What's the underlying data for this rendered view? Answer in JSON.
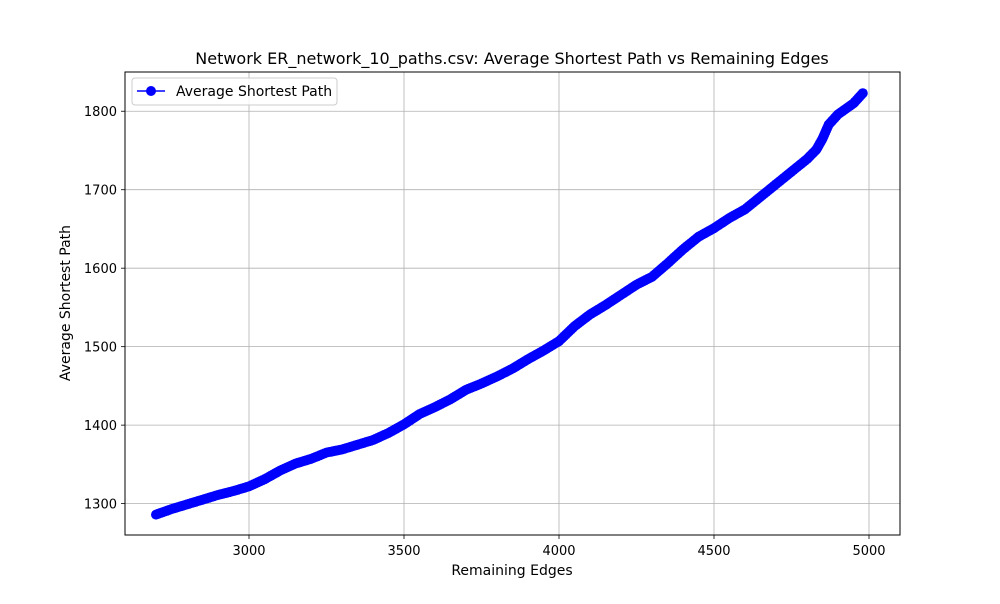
{
  "chart_data": {
    "type": "line",
    "title": "Network ER_network_10_paths.csv: Average Shortest Path vs Remaining Edges",
    "xlabel": "Remaining Edges",
    "ylabel": "Average Shortest Path",
    "xlim": [
      2600,
      5100
    ],
    "ylim": [
      1260,
      1850
    ],
    "xticks": [
      3000,
      3500,
      4000,
      4500,
      5000
    ],
    "yticks": [
      1300,
      1400,
      1500,
      1600,
      1700,
      1800
    ],
    "grid": true,
    "legend": {
      "position": "upper-left"
    },
    "series": [
      {
        "name": "Average Shortest Path",
        "color": "#0000ff",
        "marker": "circle",
        "x": [
          2700,
          2750,
          2800,
          2850,
          2900,
          2950,
          3000,
          3050,
          3100,
          3150,
          3200,
          3250,
          3300,
          3350,
          3400,
          3450,
          3500,
          3550,
          3600,
          3650,
          3700,
          3750,
          3800,
          3850,
          3900,
          3950,
          4000,
          4050,
          4100,
          4150,
          4200,
          4250,
          4300,
          4350,
          4400,
          4450,
          4500,
          4550,
          4600,
          4650,
          4700,
          4750,
          4800,
          4830,
          4850,
          4870,
          4900,
          4950,
          4980
        ],
        "y": [
          1286,
          1293,
          1299,
          1305,
          1311,
          1316,
          1322,
          1331,
          1342,
          1351,
          1357,
          1365,
          1369,
          1375,
          1381,
          1390,
          1401,
          1414,
          1423,
          1433,
          1445,
          1453,
          1462,
          1472,
          1484,
          1495,
          1507,
          1526,
          1541,
          1553,
          1566,
          1579,
          1589,
          1606,
          1624,
          1640,
          1651,
          1664,
          1675,
          1691,
          1707,
          1723,
          1739,
          1751,
          1765,
          1783,
          1796,
          1810,
          1823
        ]
      }
    ]
  }
}
